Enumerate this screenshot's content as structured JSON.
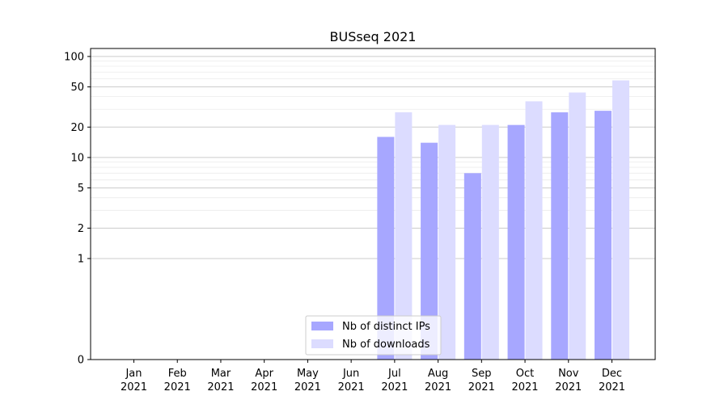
{
  "chart_data": {
    "type": "bar",
    "title": "BUSseq 2021",
    "xlabel": "",
    "ylabel": "",
    "y_scale": "symlog",
    "ylim": [
      0,
      120
    ],
    "yticks": [
      0,
      1,
      2,
      5,
      10,
      20,
      50,
      100
    ],
    "grid": true,
    "legend_position": "lower center",
    "categories": [
      [
        "Jan",
        "2021"
      ],
      [
        "Feb",
        "2021"
      ],
      [
        "Mar",
        "2021"
      ],
      [
        "Apr",
        "2021"
      ],
      [
        "May",
        "2021"
      ],
      [
        "Jun",
        "2021"
      ],
      [
        "Jul",
        "2021"
      ],
      [
        "Aug",
        "2021"
      ],
      [
        "Sep",
        "2021"
      ],
      [
        "Oct",
        "2021"
      ],
      [
        "Nov",
        "2021"
      ],
      [
        "Dec",
        "2021"
      ]
    ],
    "series": [
      {
        "name": "Nb of distinct IPs",
        "color": "#a7a7ff",
        "values": [
          0,
          0,
          0,
          0,
          0,
          0,
          16,
          14,
          7,
          21,
          28,
          29
        ]
      },
      {
        "name": "Nb of downloads",
        "color": "#dcdcff",
        "values": [
          0,
          0,
          0,
          0,
          0,
          0,
          28,
          21,
          21,
          36,
          44,
          58
        ]
      }
    ]
  }
}
